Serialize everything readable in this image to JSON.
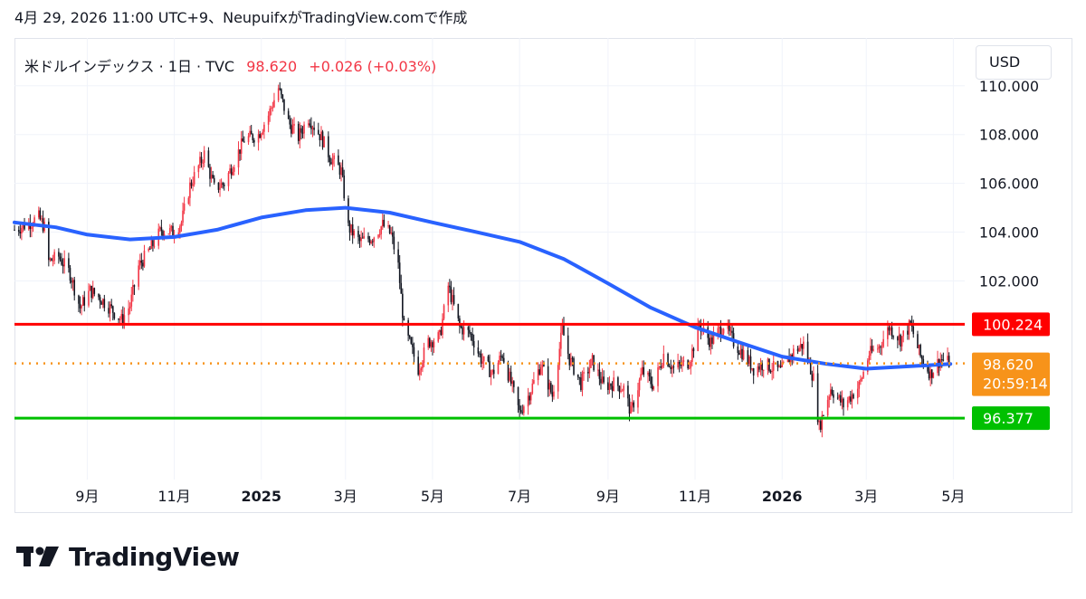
{
  "header": {
    "caption": "4月 29, 2026 11:00 UTC+9、NeupuifxがTradingView.comで作成"
  },
  "legend": {
    "symbol": "米ドルインデックス · 1日 · TVC",
    "last": "98.620",
    "change": "+0.026 (+0.03%)"
  },
  "currency_button": {
    "label": "USD"
  },
  "brand": {
    "name": "TradingView"
  },
  "colors": {
    "up": "#f23645",
    "down": "#131722",
    "ma": "#2962ff",
    "resistance": "#ff0000",
    "support": "#00c000",
    "price_line": "#f7931a",
    "axis_text": "#131722",
    "grid": "#f0f3fa"
  },
  "chart_data": {
    "type": "line",
    "title": "米ドルインデックス · 1日 · TVC",
    "y_axis": {
      "ylim": [
        94.6,
        110.4
      ],
      "ticks": [
        102,
        104,
        106,
        108,
        110
      ],
      "tick_labels": [
        "102.000",
        "104.000",
        "106.000",
        "108.000",
        "110.000"
      ],
      "side": "right"
    },
    "x_axis": {
      "range": [
        "2024-07-12",
        "2026-05-09"
      ],
      "ticks": [
        {
          "date": "2024-09-01",
          "label": "9月",
          "bold": false
        },
        {
          "date": "2024-11-01",
          "label": "11月",
          "bold": false
        },
        {
          "date": "2025-01-01",
          "label": "2025",
          "bold": true
        },
        {
          "date": "2025-03-01",
          "label": "3月",
          "bold": false
        },
        {
          "date": "2025-05-01",
          "label": "5月",
          "bold": false
        },
        {
          "date": "2025-07-01",
          "label": "7月",
          "bold": false
        },
        {
          "date": "2025-09-01",
          "label": "9月",
          "bold": false
        },
        {
          "date": "2025-11-01",
          "label": "11月",
          "bold": false
        },
        {
          "date": "2026-01-01",
          "label": "2026",
          "bold": true
        },
        {
          "date": "2026-03-01",
          "label": "3月",
          "bold": false
        },
        {
          "date": "2026-05-01",
          "label": "5月",
          "bold": false
        }
      ]
    },
    "series": [
      {
        "name": "米ドルインデックス",
        "style": "close",
        "points": [
          [
            "2024-07-12",
            104.1
          ],
          [
            "2024-07-20",
            104.3
          ],
          [
            "2024-07-29",
            104.6
          ],
          [
            "2024-08-02",
            104.2
          ],
          [
            "2024-08-05",
            102.8
          ],
          [
            "2024-08-12",
            103.0
          ],
          [
            "2024-08-20",
            102.3
          ],
          [
            "2024-08-27",
            100.9
          ],
          [
            "2024-09-03",
            101.6
          ],
          [
            "2024-09-10",
            101.3
          ],
          [
            "2024-09-17",
            100.9
          ],
          [
            "2024-09-25",
            100.4
          ],
          [
            "2024-10-01",
            101.0
          ],
          [
            "2024-10-07",
            102.6
          ],
          [
            "2024-10-15",
            103.3
          ],
          [
            "2024-10-23",
            104.1
          ],
          [
            "2024-10-31",
            104.0
          ],
          [
            "2024-11-06",
            104.4
          ],
          [
            "2024-11-12",
            105.9
          ],
          [
            "2024-11-22",
            107.2
          ],
          [
            "2024-11-29",
            105.8
          ],
          [
            "2024-12-06",
            106.0
          ],
          [
            "2024-12-13",
            106.9
          ],
          [
            "2024-12-20",
            107.8
          ],
          [
            "2024-12-30",
            108.0
          ],
          [
            "2025-01-06",
            108.8
          ],
          [
            "2025-01-13",
            109.9
          ],
          [
            "2025-01-20",
            108.5
          ],
          [
            "2025-01-27",
            107.9
          ],
          [
            "2025-02-03",
            108.7
          ],
          [
            "2025-02-12",
            107.9
          ],
          [
            "2025-02-18",
            107.1
          ],
          [
            "2025-02-26",
            106.5
          ],
          [
            "2025-03-03",
            104.2
          ],
          [
            "2025-03-11",
            103.6
          ],
          [
            "2025-03-20",
            103.8
          ],
          [
            "2025-03-27",
            104.3
          ],
          [
            "2025-04-02",
            103.9
          ],
          [
            "2025-04-07",
            102.6
          ],
          [
            "2025-04-11",
            100.1
          ],
          [
            "2025-04-21",
            98.4
          ],
          [
            "2025-04-28",
            99.5
          ],
          [
            "2025-05-06",
            99.7
          ],
          [
            "2025-05-12",
            101.8
          ],
          [
            "2025-05-20",
            100.1
          ],
          [
            "2025-05-28",
            99.8
          ],
          [
            "2025-06-04",
            98.8
          ],
          [
            "2025-06-12",
            98.2
          ],
          [
            "2025-06-19",
            99.0
          ],
          [
            "2025-06-27",
            97.4
          ],
          [
            "2025-07-01",
            96.6
          ],
          [
            "2025-07-08",
            97.4
          ],
          [
            "2025-07-16",
            98.6
          ],
          [
            "2025-07-24",
            97.3
          ],
          [
            "2025-07-31",
            100.0
          ],
          [
            "2025-08-05",
            98.8
          ],
          [
            "2025-08-13",
            97.8
          ],
          [
            "2025-08-21",
            98.7
          ],
          [
            "2025-08-29",
            97.7
          ],
          [
            "2025-09-05",
            97.8
          ],
          [
            "2025-09-12",
            97.6
          ],
          [
            "2025-09-17",
            96.6
          ],
          [
            "2025-09-25",
            98.3
          ],
          [
            "2025-10-03",
            97.7
          ],
          [
            "2025-10-10",
            99.0
          ],
          [
            "2025-10-17",
            98.4
          ],
          [
            "2025-10-28",
            98.7
          ],
          [
            "2025-11-04",
            100.2
          ],
          [
            "2025-11-12",
            99.5
          ],
          [
            "2025-11-21",
            100.2
          ],
          [
            "2025-11-28",
            99.5
          ],
          [
            "2025-12-05",
            99.0
          ],
          [
            "2025-12-12",
            98.4
          ],
          [
            "2025-12-19",
            98.6
          ],
          [
            "2025-12-31",
            98.3
          ],
          [
            "2026-01-09",
            99.1
          ],
          [
            "2026-01-16",
            99.4
          ],
          [
            "2026-01-23",
            98.0
          ],
          [
            "2026-01-27",
            96.0
          ],
          [
            "2026-02-04",
            97.6
          ],
          [
            "2026-02-13",
            96.9
          ],
          [
            "2026-02-24",
            97.7
          ],
          [
            "2026-03-03",
            99.0
          ],
          [
            "2026-03-10",
            99.3
          ],
          [
            "2026-03-17",
            100.1
          ],
          [
            "2026-03-25",
            99.6
          ],
          [
            "2026-04-01",
            100.2
          ],
          [
            "2026-04-08",
            98.9
          ],
          [
            "2026-04-15",
            98.2
          ],
          [
            "2026-04-22",
            98.8
          ],
          [
            "2026-04-29",
            98.62
          ]
        ]
      },
      {
        "name": "MA",
        "style": "moving-average",
        "points": [
          [
            "2024-07-12",
            104.4
          ],
          [
            "2024-08-10",
            104.2
          ],
          [
            "2024-09-01",
            103.9
          ],
          [
            "2024-10-01",
            103.7
          ],
          [
            "2024-11-01",
            103.8
          ],
          [
            "2024-12-01",
            104.1
          ],
          [
            "2025-01-01",
            104.6
          ],
          [
            "2025-02-01",
            104.9
          ],
          [
            "2025-03-01",
            105.0
          ],
          [
            "2025-04-01",
            104.8
          ],
          [
            "2025-05-01",
            104.4
          ],
          [
            "2025-06-01",
            104.0
          ],
          [
            "2025-07-01",
            103.6
          ],
          [
            "2025-08-01",
            102.9
          ],
          [
            "2025-09-01",
            101.9
          ],
          [
            "2025-10-01",
            100.9
          ],
          [
            "2025-11-01",
            100.1
          ],
          [
            "2025-12-01",
            99.5
          ],
          [
            "2026-01-01",
            98.9
          ],
          [
            "2026-02-01",
            98.6
          ],
          [
            "2026-03-01",
            98.4
          ],
          [
            "2026-04-01",
            98.5
          ],
          [
            "2026-04-29",
            98.6
          ]
        ]
      }
    ],
    "horizontal_lines": [
      {
        "value": 100.224,
        "label": "100.224",
        "color": "#ff0000",
        "style": "solid"
      },
      {
        "value": 96.377,
        "label": "96.377",
        "color": "#00c000",
        "style": "solid"
      },
      {
        "value": 98.62,
        "label": "98.620",
        "sublabel": "20:59:14",
        "color": "#f7931a",
        "style": "dotted"
      }
    ],
    "grid": true,
    "legend": "top-left"
  }
}
